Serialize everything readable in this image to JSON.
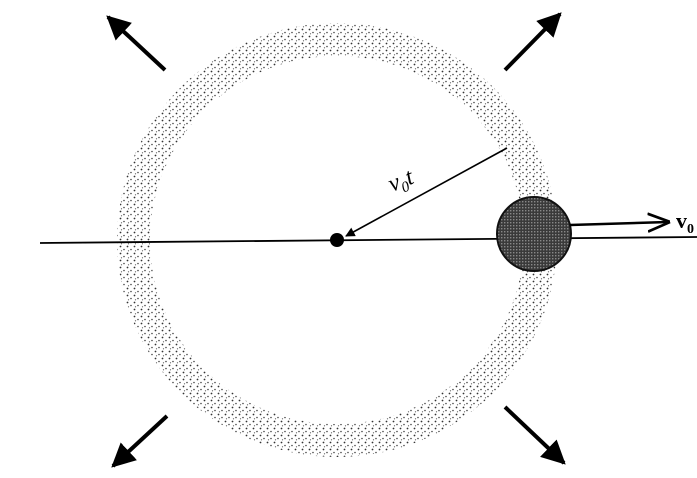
{
  "radius_label": {
    "symbol": "v",
    "subscript": "0",
    "suffix": "t"
  },
  "velocity_label": {
    "symbol": "v",
    "subscript": "0"
  }
}
